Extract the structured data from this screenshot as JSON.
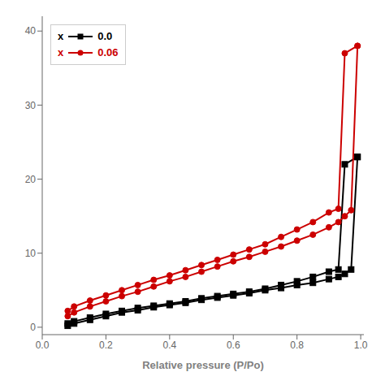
{
  "chart_data": {
    "type": "line",
    "xlabel": "Relative pressure (P/Po)",
    "xlim": [
      0.0,
      1.01
    ],
    "ylim": [
      -1,
      42
    ],
    "xticks": [
      {
        "value": 0.0,
        "label": "0.0"
      },
      0.2,
      0.4,
      0.6,
      0.8,
      {
        "value": 1.0,
        "label": "1.0"
      }
    ],
    "yticks": [
      0,
      10,
      20,
      30,
      40
    ],
    "grid": false,
    "legend": "upper left",
    "annotations": [
      {
        "text": "x",
        "color": "#000000"
      },
      {
        "text": "x",
        "color": "#cc0000"
      }
    ],
    "series": [
      {
        "name": "0.0",
        "color": "#000000",
        "marker": "square",
        "branches": [
          {
            "x": [
              0.08,
              0.1,
              0.15,
              0.2,
              0.25,
              0.3,
              0.35,
              0.4,
              0.45,
              0.5,
              0.55,
              0.6,
              0.65,
              0.7,
              0.75,
              0.8,
              0.85,
              0.9,
              0.93,
              0.95,
              0.97,
              0.99
            ],
            "values": [
              0.2,
              0.5,
              1.0,
              1.5,
              2.0,
              2.3,
              2.7,
              3.0,
              3.3,
              3.7,
              4.0,
              4.3,
              4.6,
              5.0,
              5.3,
              5.7,
              6.0,
              6.5,
              6.8,
              7.2,
              7.8,
              23.0
            ]
          },
          {
            "x": [
              0.99,
              0.95,
              0.93,
              0.9,
              0.85,
              0.8,
              0.75,
              0.7,
              0.65,
              0.6,
              0.55,
              0.5,
              0.45,
              0.4,
              0.35,
              0.3,
              0.25,
              0.2,
              0.15,
              0.1,
              0.08
            ],
            "values": [
              23.0,
              22.0,
              7.8,
              7.5,
              6.8,
              6.2,
              5.7,
              5.2,
              4.8,
              4.5,
              4.2,
              3.9,
              3.5,
              3.2,
              2.9,
              2.6,
              2.2,
              1.8,
              1.3,
              0.8,
              0.5
            ]
          }
        ]
      },
      {
        "name": "0.06",
        "color": "#cc0000",
        "marker": "circle",
        "branches": [
          {
            "x": [
              0.08,
              0.1,
              0.15,
              0.2,
              0.25,
              0.3,
              0.35,
              0.4,
              0.45,
              0.5,
              0.55,
              0.6,
              0.65,
              0.7,
              0.75,
              0.8,
              0.85,
              0.9,
              0.93,
              0.95,
              0.97,
              0.99
            ],
            "values": [
              1.5,
              2.0,
              2.8,
              3.5,
              4.2,
              4.8,
              5.5,
              6.2,
              6.8,
              7.5,
              8.2,
              8.9,
              9.5,
              10.2,
              10.9,
              11.7,
              12.5,
              13.5,
              14.2,
              15.0,
              15.8,
              38.0
            ]
          },
          {
            "x": [
              0.99,
              0.95,
              0.93,
              0.9,
              0.85,
              0.8,
              0.75,
              0.7,
              0.65,
              0.6,
              0.55,
              0.5,
              0.45,
              0.4,
              0.35,
              0.3,
              0.25,
              0.2,
              0.15,
              0.1,
              0.08
            ],
            "values": [
              38.0,
              37.0,
              16.0,
              15.5,
              14.2,
              13.2,
              12.2,
              11.2,
              10.5,
              9.8,
              9.1,
              8.4,
              7.7,
              7.0,
              6.4,
              5.7,
              5.0,
              4.3,
              3.6,
              2.8,
              2.2
            ]
          }
        ]
      }
    ]
  }
}
